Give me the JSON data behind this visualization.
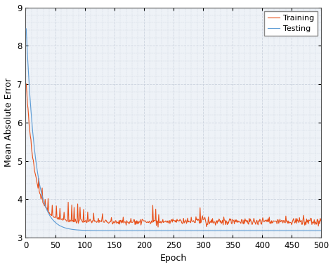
{
  "title": "",
  "xlabel": "Epoch",
  "ylabel": "Mean Absolute Error",
  "xlim": [
    0,
    500
  ],
  "ylim": [
    3,
    9
  ],
  "yticks": [
    3,
    4,
    5,
    6,
    7,
    8,
    9
  ],
  "xticks": [
    0,
    50,
    100,
    150,
    200,
    250,
    300,
    350,
    400,
    450,
    500
  ],
  "training_color": "#5B9BD5",
  "testing_color": "#E8501A",
  "background_color": "#EEF2F7",
  "grid_color": "#C8D0DC",
  "legend_labels": [
    "Training",
    "Testing"
  ],
  "n_epochs": 500,
  "train_start": 8.8,
  "train_end": 3.18,
  "test_start": 7.3,
  "test_end": 3.42,
  "train_decay": 0.065,
  "test_decay": 0.07,
  "noise_scale": 0.045,
  "late_noise_scale": 0.048,
  "spike_scale": 0.55,
  "line_width": 0.8,
  "xlabel_fontsize": 9,
  "ylabel_fontsize": 9,
  "tick_fontsize": 8.5,
  "legend_fontsize": 8
}
